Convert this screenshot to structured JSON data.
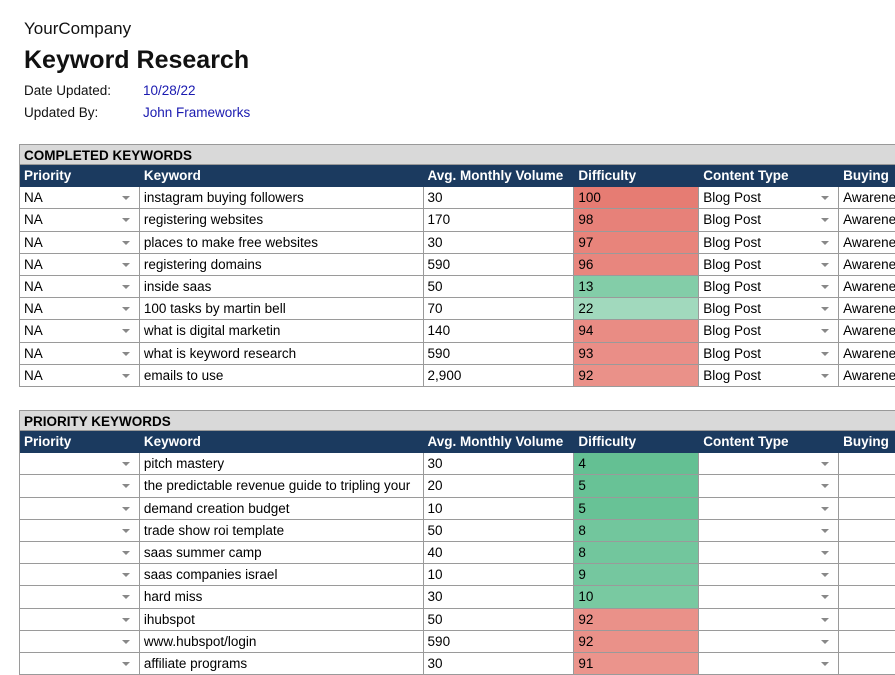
{
  "header": {
    "company": "YourCompany",
    "title": "Keyword Research",
    "date_label": "Date Updated:",
    "date": "10/28/22",
    "updated_by_label": "Updated By:",
    "updated_by": "John Frameworks"
  },
  "sections": [
    {
      "title": "COMPLETED KEYWORDS",
      "columns": [
        "Priority",
        "Keyword",
        "Avg. Monthly Volume",
        "Difficulty",
        "Content Type",
        "Buying"
      ],
      "rows": [
        {
          "priority": "NA",
          "keyword": "instagram buying followers",
          "volume": "30",
          "difficulty": 100,
          "content_type": "Blog Post",
          "buying_stage": "Awarene"
        },
        {
          "priority": "NA",
          "keyword": "registering websites",
          "volume": "170",
          "difficulty": 98,
          "content_type": "Blog Post",
          "buying_stage": "Awarene"
        },
        {
          "priority": "NA",
          "keyword": "places to make free websites",
          "volume": "30",
          "difficulty": 97,
          "content_type": "Blog Post",
          "buying_stage": "Awarene"
        },
        {
          "priority": "NA",
          "keyword": "registering domains",
          "volume": "590",
          "difficulty": 96,
          "content_type": "Blog Post",
          "buying_stage": "Awarene"
        },
        {
          "priority": "NA",
          "keyword": "inside saas",
          "volume": "50",
          "difficulty": 13,
          "content_type": "Blog Post",
          "buying_stage": "Awarene"
        },
        {
          "priority": "NA",
          "keyword": "100 tasks by martin bell",
          "volume": "70",
          "difficulty": 22,
          "content_type": "Blog Post",
          "buying_stage": "Awarene"
        },
        {
          "priority": "NA",
          "keyword": "what is digital marketin",
          "volume": "140",
          "difficulty": 94,
          "content_type": "Blog Post",
          "buying_stage": "Awarene"
        },
        {
          "priority": "NA",
          "keyword": "what is keyword research",
          "volume": "590",
          "difficulty": 93,
          "content_type": "Blog Post",
          "buying_stage": "Awarene"
        },
        {
          "priority": "NA",
          "keyword": "emails to use",
          "volume": "2,900",
          "difficulty": 92,
          "content_type": "Blog Post",
          "buying_stage": "Awarene"
        }
      ]
    },
    {
      "title": "PRIORITY KEYWORDS",
      "columns": [
        "Priority",
        "Keyword",
        "Avg. Monthly Volume",
        "Difficulty",
        "Content Type",
        "Buying"
      ],
      "rows": [
        {
          "keyword": "pitch mastery",
          "volume": "30",
          "difficulty": 4
        },
        {
          "keyword": "the predictable revenue guide to tripling your",
          "volume": "20",
          "difficulty": 5
        },
        {
          "keyword": "demand creation budget",
          "volume": "10",
          "difficulty": 5
        },
        {
          "keyword": "trade show roi template",
          "volume": "50",
          "difficulty": 8
        },
        {
          "keyword": "saas summer camp",
          "volume": "40",
          "difficulty": 8
        },
        {
          "keyword": "saas companies israel",
          "volume": "10",
          "difficulty": 9
        },
        {
          "keyword": "hard miss",
          "volume": "30",
          "difficulty": 10
        },
        {
          "keyword": "ihubspot",
          "volume": "50",
          "difficulty": 92
        },
        {
          "keyword": "www.hubspot/login",
          "volume": "590",
          "difficulty": 92
        },
        {
          "keyword": "affiliate programs",
          "volume": "30",
          "difficulty": 91
        }
      ]
    }
  ]
}
